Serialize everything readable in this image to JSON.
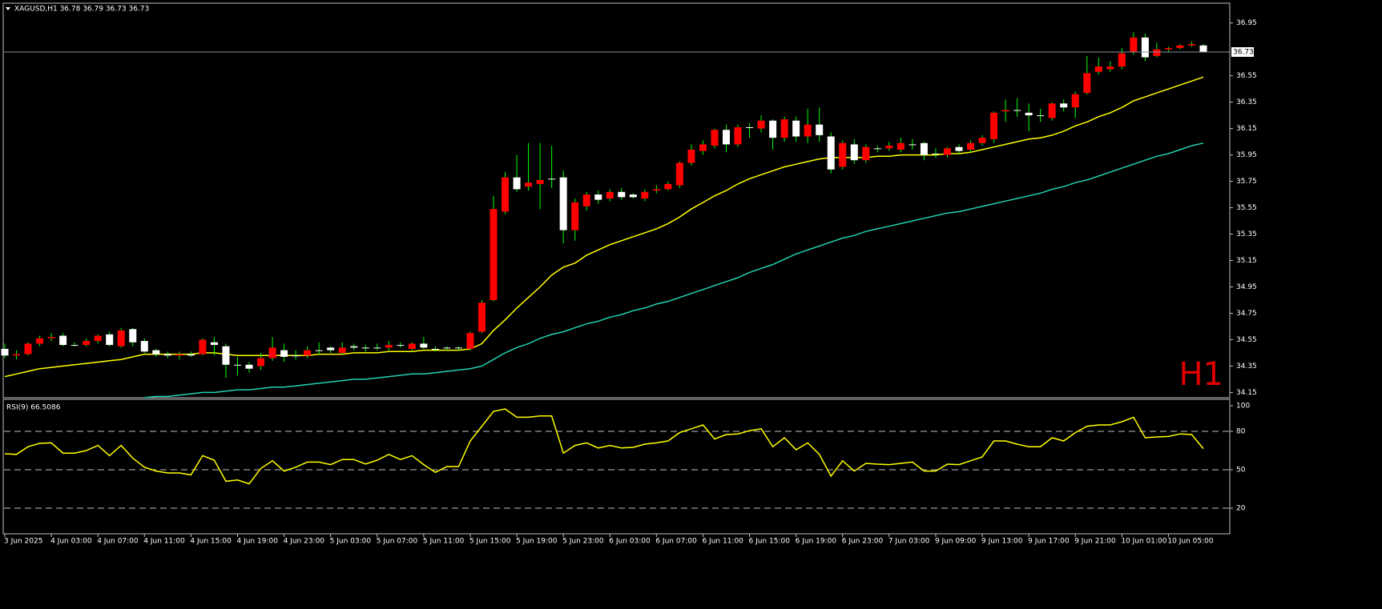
{
  "chart_data": [
    {
      "type": "candlestick",
      "title": "XAGUSD,H1  36.78 36.79 36.73 36.73",
      "timeframe_label": "H1",
      "categories": [
        "3 Jun 2025",
        null,
        null,
        null,
        "4 Jun 03:00",
        null,
        null,
        null,
        "4 Jun 07:00",
        null,
        null,
        null,
        "4 Jun 11:00",
        null,
        null,
        null,
        "4 Jun 15:00",
        null,
        null,
        null,
        "4 Jun 19:00",
        null,
        null,
        null,
        "4 Jun 23:00",
        null,
        null,
        null,
        "5 Jun 03:00",
        null,
        null,
        null,
        "5 Jun 07:00",
        null,
        null,
        null,
        "5 Jun 11:00",
        null,
        null,
        null,
        "5 Jun 15:00",
        null,
        null,
        null,
        "5 Jun 19:00",
        null,
        null,
        null,
        "5 Jun 23:00",
        null,
        null,
        null,
        "6 Jun 03:00",
        null,
        null,
        null,
        "6 Jun 07:00",
        null,
        null,
        null,
        "6 Jun 11:00",
        null,
        null,
        null,
        "6 Jun 15:00",
        null,
        null,
        null,
        "6 Jun 19:00",
        null,
        null,
        null,
        "6 Jun 23:00",
        null,
        null,
        null,
        "7 Jun 03:00",
        null,
        null,
        null,
        "9 Jun 09:00",
        null,
        null,
        null,
        "9 Jun 13:00",
        null,
        null,
        null,
        "9 Jun 17:00",
        null,
        null,
        null,
        "9 Jun 21:00",
        null,
        null,
        null,
        "10 Jun 01:00",
        null,
        null,
        null,
        "10 Jun 05:00",
        null,
        null,
        null
      ],
      "open": [
        34.48,
        34.43,
        34.44,
        34.52,
        34.56,
        34.58,
        34.51,
        34.51,
        34.54,
        34.59,
        34.5,
        34.63,
        34.54,
        34.47,
        34.44,
        34.43,
        34.44,
        34.44,
        34.53,
        34.5,
        34.36,
        34.36,
        34.35,
        34.41,
        34.47,
        34.43,
        34.43,
        34.47,
        34.49,
        34.45,
        34.5,
        34.49,
        34.49,
        34.49,
        34.51,
        34.48,
        34.52,
        34.48,
        34.49,
        34.49,
        34.48,
        34.61,
        34.85,
        35.52,
        35.78,
        35.71,
        35.73,
        35.77,
        35.78,
        35.38,
        35.56,
        35.65,
        35.62,
        35.67,
        35.65,
        35.62,
        35.68,
        35.69,
        35.72,
        35.89,
        35.98,
        36.02,
        36.14,
        36.03,
        36.16,
        36.15,
        36.21,
        36.08,
        36.21,
        36.09,
        36.18,
        36.09,
        35.86,
        36.03,
        35.91,
        36.0,
        36.0,
        35.99,
        36.03,
        36.04,
        35.96,
        35.95,
        36.01,
        35.99,
        36.04,
        36.07,
        36.28,
        36.29,
        36.27,
        36.25,
        36.23,
        36.34,
        36.31,
        36.42,
        36.58,
        36.6,
        36.62,
        36.73,
        36.84,
        36.7,
        36.75,
        36.76,
        36.78,
        36.78
      ],
      "high": [
        34.52,
        34.47,
        34.53,
        34.58,
        34.6,
        34.6,
        34.53,
        34.56,
        34.59,
        34.61,
        34.64,
        34.64,
        34.56,
        34.48,
        34.46,
        34.46,
        34.46,
        34.56,
        34.57,
        34.52,
        34.42,
        34.38,
        34.45,
        34.57,
        34.52,
        34.47,
        34.5,
        34.53,
        34.5,
        34.53,
        34.52,
        34.51,
        34.52,
        34.54,
        34.53,
        34.53,
        34.57,
        34.5,
        34.5,
        34.5,
        34.61,
        34.85,
        35.64,
        35.82,
        35.95,
        36.04,
        36.04,
        36.02,
        35.83,
        35.62,
        35.67,
        35.68,
        35.69,
        35.7,
        35.66,
        35.69,
        35.72,
        35.75,
        35.9,
        36.03,
        36.06,
        36.15,
        36.18,
        36.18,
        36.19,
        36.25,
        36.22,
        36.24,
        36.24,
        36.3,
        36.31,
        36.12,
        36.06,
        36.07,
        36.03,
        36.02,
        36.05,
        36.08,
        36.07,
        36.05,
        36.0,
        36.01,
        36.03,
        36.06,
        36.1,
        36.28,
        36.37,
        36.38,
        36.34,
        36.3,
        36.35,
        36.37,
        36.43,
        36.7,
        36.69,
        36.66,
        36.76,
        36.88,
        36.87,
        36.8,
        36.77,
        36.79,
        36.81,
        36.79
      ],
      "low": [
        34.41,
        34.4,
        34.43,
        34.5,
        34.54,
        34.5,
        34.5,
        34.5,
        34.52,
        34.5,
        34.49,
        34.5,
        34.45,
        34.42,
        34.41,
        34.4,
        34.42,
        34.43,
        34.43,
        34.26,
        34.28,
        34.3,
        34.32,
        34.39,
        34.38,
        34.4,
        34.41,
        34.44,
        34.45,
        34.44,
        34.47,
        34.46,
        34.47,
        34.47,
        34.49,
        34.47,
        34.48,
        34.46,
        34.47,
        34.47,
        34.47,
        34.6,
        34.84,
        35.5,
        35.67,
        35.68,
        35.54,
        35.7,
        35.28,
        35.3,
        35.53,
        35.58,
        35.6,
        35.61,
        35.62,
        35.6,
        35.66,
        35.68,
        35.7,
        35.87,
        35.95,
        36.0,
        35.97,
        36.01,
        36.08,
        36.12,
        35.99,
        36.05,
        36.05,
        36.04,
        36.05,
        35.81,
        35.84,
        35.88,
        35.89,
        35.97,
        35.98,
        35.97,
        35.99,
        35.91,
        35.93,
        35.93,
        35.96,
        35.97,
        36.02,
        36.04,
        36.2,
        36.24,
        36.13,
        36.2,
        36.21,
        36.28,
        36.23,
        36.41,
        36.56,
        36.58,
        36.6,
        36.71,
        36.66,
        36.69,
        36.73,
        36.75,
        36.77,
        36.73
      ],
      "close": [
        34.43,
        34.44,
        34.52,
        34.56,
        34.57,
        34.51,
        34.51,
        34.54,
        34.58,
        34.51,
        34.62,
        34.53,
        34.46,
        34.44,
        34.43,
        34.44,
        34.43,
        34.55,
        34.51,
        34.36,
        34.36,
        34.33,
        34.41,
        34.49,
        34.42,
        34.43,
        34.47,
        34.47,
        34.47,
        34.49,
        34.49,
        34.49,
        34.49,
        34.51,
        34.51,
        34.52,
        34.49,
        34.48,
        34.49,
        34.49,
        34.6,
        34.83,
        35.54,
        35.78,
        35.69,
        35.74,
        35.76,
        35.77,
        35.38,
        35.59,
        35.65,
        35.61,
        35.67,
        35.63,
        35.63,
        35.67,
        35.69,
        35.73,
        35.89,
        35.99,
        36.03,
        36.14,
        36.03,
        36.16,
        36.16,
        36.21,
        36.08,
        36.22,
        36.09,
        36.18,
        36.1,
        35.84,
        36.04,
        35.91,
        36.01,
        36.0,
        36.02,
        36.04,
        36.03,
        35.95,
        35.96,
        36.0,
        35.98,
        36.04,
        36.08,
        36.27,
        36.29,
        36.29,
        36.25,
        36.25,
        36.34,
        36.31,
        36.41,
        36.57,
        36.62,
        36.62,
        36.72,
        36.84,
        36.69,
        36.75,
        36.76,
        36.78,
        36.79,
        36.73
      ],
      "up_color": "#ff0000",
      "down_color": "#ffffff",
      "wick_color": "#00ff00",
      "series": [
        {
          "color": "#ffff00",
          "values": [
            34.27,
            34.29,
            34.31,
            34.33,
            34.34,
            34.35,
            34.36,
            34.37,
            34.38,
            34.39,
            34.4,
            34.42,
            34.44,
            34.44,
            34.44,
            34.44,
            34.44,
            34.45,
            34.45,
            34.44,
            34.43,
            34.43,
            34.43,
            34.43,
            34.43,
            34.43,
            34.43,
            34.44,
            34.44,
            34.44,
            34.45,
            34.45,
            34.45,
            34.46,
            34.46,
            34.46,
            34.47,
            34.47,
            34.47,
            34.47,
            34.48,
            34.52,
            34.62,
            34.7,
            34.79,
            34.87,
            34.95,
            35.04,
            35.1,
            35.13,
            35.19,
            35.23,
            35.27,
            35.3,
            35.33,
            35.36,
            35.39,
            35.43,
            35.48,
            35.54,
            35.59,
            35.64,
            35.68,
            35.73,
            35.77,
            35.8,
            35.83,
            35.86,
            35.88,
            35.9,
            35.92,
            35.93,
            35.93,
            35.93,
            35.93,
            35.94,
            35.94,
            35.95,
            35.95,
            35.95,
            35.95,
            35.96,
            35.96,
            35.97,
            35.99,
            36.01,
            36.03,
            36.05,
            36.07,
            36.08,
            36.1,
            36.13,
            36.17,
            36.2,
            36.24,
            36.27,
            36.31,
            36.36,
            36.39,
            36.42,
            36.45,
            36.48,
            36.51,
            36.54
          ]
        },
        {
          "color": "#20d0b0",
          "values": [
            null,
            null,
            null,
            null,
            null,
            null,
            null,
            null,
            null,
            null,
            null,
            null,
            34.11,
            34.12,
            34.12,
            34.13,
            34.14,
            34.15,
            34.15,
            34.16,
            34.17,
            34.17,
            34.18,
            34.19,
            34.19,
            34.2,
            34.21,
            34.22,
            34.23,
            34.24,
            34.25,
            34.25,
            34.26,
            34.27,
            34.28,
            34.29,
            34.29,
            34.3,
            34.31,
            34.32,
            34.33,
            34.35,
            34.4,
            34.45,
            34.49,
            34.52,
            34.56,
            34.59,
            34.61,
            34.64,
            34.67,
            34.69,
            34.72,
            34.74,
            34.77,
            34.79,
            34.82,
            34.84,
            34.87,
            34.9,
            34.93,
            34.96,
            34.99,
            35.02,
            35.06,
            35.09,
            35.12,
            35.16,
            35.2,
            35.23,
            35.26,
            35.29,
            35.32,
            35.34,
            35.37,
            35.39,
            35.41,
            35.43,
            35.45,
            35.47,
            35.49,
            35.51,
            35.52,
            35.54,
            35.56,
            35.58,
            35.6,
            35.62,
            35.64,
            35.66,
            35.69,
            35.71,
            35.74,
            35.76,
            35.79,
            35.82,
            35.85,
            35.88,
            35.91,
            35.94,
            35.96,
            35.99,
            36.02,
            36.04
          ]
        }
      ],
      "current_price": 36.73,
      "ylim": [
        34.11,
        37.1
      ],
      "yticks": [
        34.15,
        34.35,
        34.55,
        34.75,
        34.95,
        35.15,
        35.35,
        35.55,
        35.75,
        35.95,
        36.15,
        36.35,
        36.55,
        36.95
      ]
    },
    {
      "type": "line",
      "title": "RSI(9) 66.5086",
      "series": [
        {
          "color": "#ffff00",
          "values": [
            62.5,
            62,
            68,
            70.6,
            71,
            63,
            63,
            65,
            69,
            61,
            69,
            59,
            52,
            49,
            47.5,
            47.5,
            46,
            61,
            57.5,
            41,
            42,
            39,
            51,
            57,
            49,
            52,
            56,
            56,
            54,
            58,
            58,
            54.5,
            57.5,
            62,
            58,
            61,
            54,
            48,
            52.5,
            52.5,
            72.5,
            84,
            95.6,
            97.5,
            91,
            91,
            92,
            92,
            63,
            69,
            71,
            67,
            69,
            67,
            67.5,
            70,
            71,
            72.5,
            79,
            82,
            85,
            74,
            77.5,
            78,
            80.5,
            82,
            68,
            75,
            65.6,
            71,
            62,
            45,
            57,
            49,
            55,
            54.4,
            54,
            55,
            56,
            49,
            49,
            54.4,
            54,
            57,
            60,
            72.5,
            72.5,
            70,
            68,
            68,
            75,
            72.5,
            79,
            84,
            85,
            85,
            87.5,
            91,
            75,
            75.6,
            76,
            78,
            77.5,
            66.51
          ]
        }
      ],
      "levels": [
        80,
        50,
        20
      ],
      "ylim": [
        0,
        105
      ],
      "yticks": [
        100,
        80,
        50,
        20
      ]
    }
  ]
}
